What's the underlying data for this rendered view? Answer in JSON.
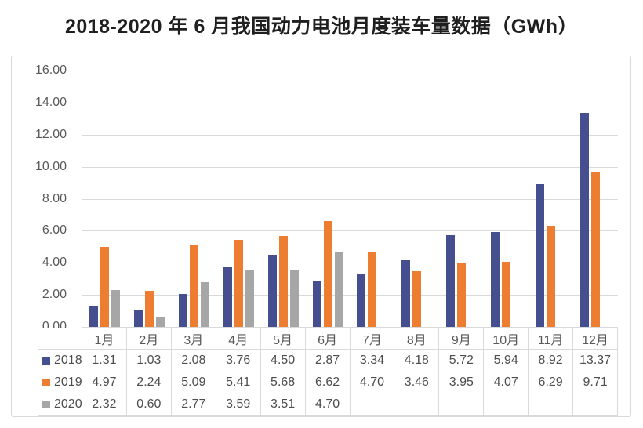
{
  "page": {
    "title": "2018-2020 年 6 月我国动力电池月度装车量数据（GWh）"
  },
  "chart_data": {
    "type": "bar",
    "title": "2018-2020 年 6 月我国动力电池月度装车量数据（GWh）",
    "categories": [
      "1月",
      "2月",
      "3月",
      "4月",
      "5月",
      "6月",
      "7月",
      "8月",
      "9月",
      "10月",
      "11月",
      "12月"
    ],
    "series": [
      {
        "name": "2018",
        "color": "#454f8f",
        "values": [
          1.31,
          1.03,
          2.08,
          3.76,
          4.5,
          2.87,
          3.34,
          4.18,
          5.72,
          5.94,
          8.92,
          13.37
        ]
      },
      {
        "name": "2019",
        "color": "#ed7d31",
        "values": [
          4.97,
          2.24,
          5.09,
          5.41,
          5.68,
          6.62,
          4.7,
          3.46,
          3.95,
          4.07,
          6.29,
          9.71
        ]
      },
      {
        "name": "2020",
        "color": "#a6a6a6",
        "values": [
          2.32,
          0.6,
          2.77,
          3.59,
          3.51,
          4.7,
          null,
          null,
          null,
          null,
          null,
          null
        ]
      }
    ],
    "ylim": [
      0,
      16
    ],
    "ytick_step": 2,
    "yticks": [
      "16.00",
      "14.00",
      "12.00",
      "10.00",
      "8.00",
      "6.00",
      "4.00",
      "2.00",
      "0.00"
    ],
    "grid": true,
    "legend_position": "data-table-left",
    "value_decimals": 2
  },
  "colors": {
    "grid_line": "#d9d9d9",
    "frame_border": "#d9d9d9",
    "axis_text": "#595959",
    "table_text": "#4d4d4d",
    "title_text": "#1f1f1f"
  }
}
